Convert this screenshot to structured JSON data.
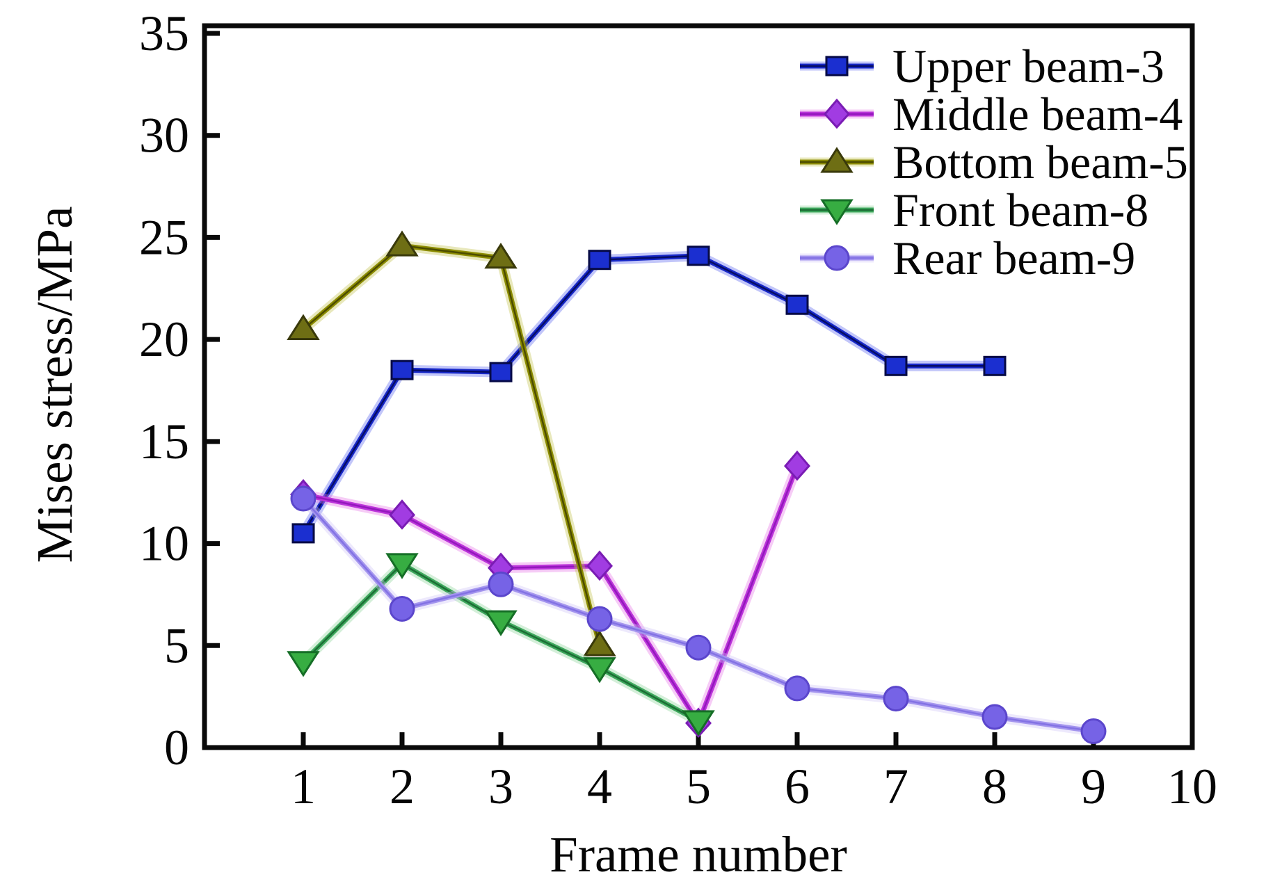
{
  "figure": {
    "background": "#ffffff",
    "axis_color": "#0a0a0a",
    "text_color": "#050505"
  },
  "chart_data": {
    "type": "line",
    "title": "",
    "xlabel": "Frame number",
    "ylabel": "Mises stress/MPa",
    "xlim": [
      0,
      10
    ],
    "ylim": [
      0,
      35
    ],
    "xticks": [
      1,
      2,
      3,
      4,
      5,
      6,
      7,
      8,
      9,
      10
    ],
    "yticks": [
      0,
      5,
      10,
      15,
      20,
      25,
      30,
      35
    ],
    "grid": false,
    "legend_position": "top-right-inside",
    "series": [
      {
        "name": "Upper beam-3",
        "marker": "square",
        "marker_fill": "#1b2fd0",
        "marker_edge": "#060a46",
        "line_color": "#1728c8",
        "line_core": "#060d66",
        "line_halo": "#5e6af0",
        "x": [
          1,
          2,
          3,
          4,
          5,
          6,
          7,
          8
        ],
        "values": [
          10.5,
          18.5,
          18.4,
          23.9,
          24.1,
          21.7,
          18.7,
          18.7
        ]
      },
      {
        "name": "Middle beam-4",
        "marker": "diamond",
        "marker_fill": "#a13ce2",
        "marker_edge": "#7a1cb4",
        "line_color": "#bc35da",
        "line_core": "#9318bc",
        "line_halo": "#e87ae8",
        "x": [
          1,
          2,
          3,
          4,
          5,
          6
        ],
        "values": [
          12.4,
          11.4,
          8.8,
          8.9,
          1.2,
          13.8
        ]
      },
      {
        "name": "Bottom beam-5",
        "marker": "triangle-up",
        "marker_fill": "#6e6e14",
        "marker_edge": "#39390a",
        "line_color": "#8c8c00",
        "line_core": "#4c4c00",
        "line_halo": "#c2c24e",
        "x": [
          1,
          2,
          3,
          4
        ],
        "values": [
          20.5,
          24.6,
          24.0,
          5.0
        ]
      },
      {
        "name": "Front beam-8",
        "marker": "triangle-down",
        "marker_fill": "#37ad42",
        "marker_edge": "#156e26",
        "line_color": "#3da75c",
        "line_core": "#1c6e35",
        "line_halo": "#8fd49c",
        "x": [
          1,
          2,
          3,
          4,
          5
        ],
        "values": [
          4.2,
          9.0,
          6.2,
          3.9,
          1.3
        ]
      },
      {
        "name": "Rear beam-9",
        "marker": "circle",
        "marker_fill": "#7663e6",
        "marker_edge": "#5b46cc",
        "line_color": "#a495ee",
        "line_core": "#8372e4",
        "line_halo": "#cfc6f8",
        "x": [
          1,
          2,
          3,
          4,
          5,
          6,
          7,
          8,
          9
        ],
        "values": [
          12.2,
          6.8,
          8.0,
          6.3,
          4.9,
          2.9,
          2.4,
          1.5,
          0.8
        ]
      }
    ]
  }
}
